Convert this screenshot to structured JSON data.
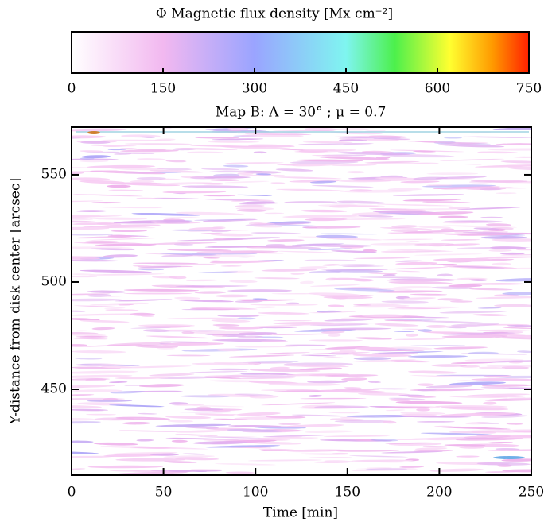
{
  "chart_data": {
    "type": "heatmap",
    "title": "Map B: Λ = 30° ; μ = 0.7",
    "x_label": "Time [min]",
    "y_label": "Y-distance from disk center [arcsec]",
    "xlim": [
      0,
      250
    ],
    "xticks": [
      0,
      50,
      100,
      150,
      200,
      250
    ],
    "ylim": [
      410,
      572.2
    ],
    "yticks": [
      450,
      500,
      550
    ],
    "colorbar": {
      "title": "Φ Magnetic flux density [Mx cm⁻²]",
      "lim": [
        0,
        750
      ],
      "ticks": [
        0,
        150,
        300,
        450,
        600,
        750
      ],
      "colormap": [
        {
          "value": 0,
          "color": "#ffffff"
        },
        {
          "value": 150,
          "color": "#f2b8f0"
        },
        {
          "value": 300,
          "color": "#9aa4ff"
        },
        {
          "value": 450,
          "color": "#7ff5f0"
        },
        {
          "value": 530,
          "color": "#4cf04c"
        },
        {
          "value": 620,
          "color": "#ffff30"
        },
        {
          "value": 690,
          "color": "#ff9a00"
        },
        {
          "value": 750,
          "color": "#ff2000"
        }
      ]
    }
  }
}
